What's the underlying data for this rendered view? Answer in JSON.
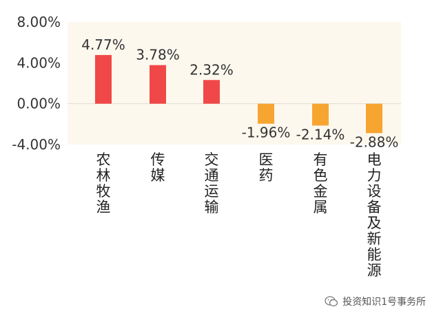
{
  "chart_data": {
    "type": "bar",
    "categories": [
      "农林牧渔",
      "传媒",
      "交通运输",
      "医药",
      "有色金属",
      "电力设备及新能源"
    ],
    "values": [
      4.77,
      3.78,
      2.32,
      -1.96,
      -2.14,
      -2.88
    ],
    "data_labels": [
      "4.77%",
      "3.78%",
      "2.32%",
      "-1.96%",
      "-2.14%",
      "-2.88%"
    ],
    "y_ticks": [
      8,
      4,
      0,
      -4
    ],
    "y_tick_labels": [
      "8.00%",
      "4.00%",
      "0.00%",
      "-4.00%"
    ],
    "ylim": [
      -4,
      8
    ],
    "title": "",
    "xlabel": "",
    "ylabel": "",
    "grid": false,
    "legend": "none",
    "colors": {
      "positive": "#f04848",
      "negative": "#f7a531",
      "plot_background": "#fdf8ee",
      "zero_line": "#e0dcd2"
    }
  },
  "watermark": {
    "text": "投资知识1号事务所",
    "icon": "wechat-icon"
  }
}
